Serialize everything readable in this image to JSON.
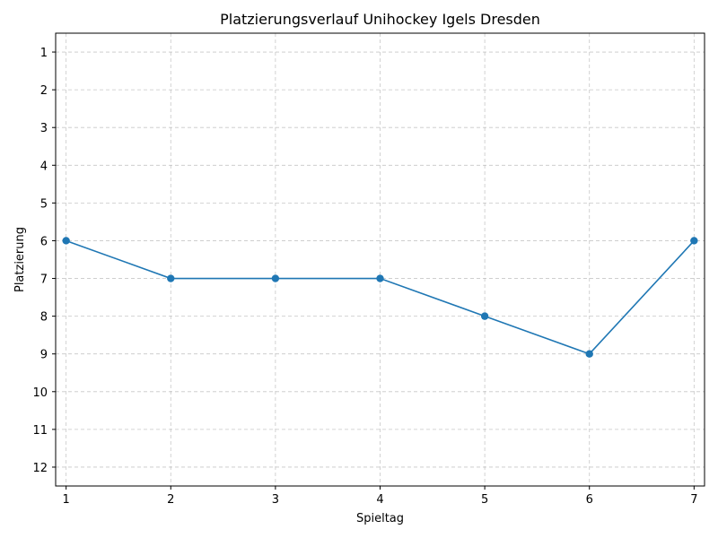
{
  "chart_data": {
    "type": "line",
    "title": "Platzierungsverlauf Unihockey Igels Dresden",
    "xlabel": "Spieltag",
    "ylabel": "Platzierung",
    "x": [
      1,
      2,
      3,
      4,
      5,
      6,
      7
    ],
    "xticks": [
      1,
      2,
      3,
      4,
      5,
      6,
      7
    ],
    "yticks": [
      1,
      2,
      3,
      4,
      5,
      6,
      7,
      8,
      9,
      10,
      11,
      12
    ],
    "xlim": [
      0.9,
      7.1
    ],
    "ylim": [
      12.5,
      0.5
    ],
    "y_inverted": true,
    "grid": true,
    "series": [
      {
        "values": [
          6,
          7,
          7,
          7,
          8,
          9,
          6
        ],
        "color": "#1f77b4",
        "marker": "circle"
      }
    ]
  }
}
